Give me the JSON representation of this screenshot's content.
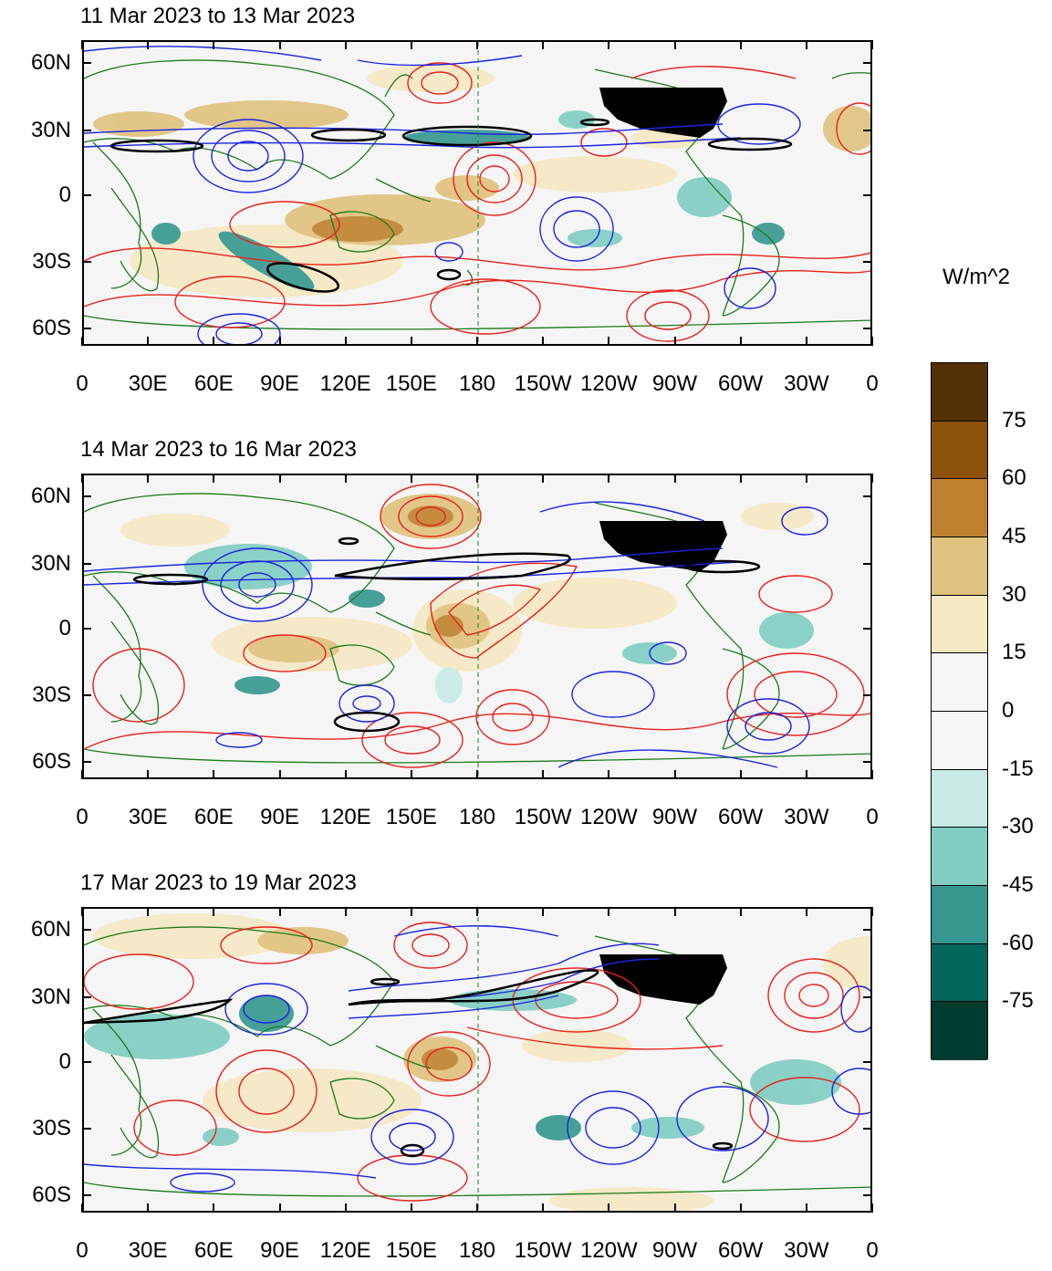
{
  "panels": [
    {
      "title": "11 Mar 2023 to 13 Mar 2023"
    },
    {
      "title": "14 Mar 2023 to 16 Mar 2023"
    },
    {
      "title": "17 Mar 2023 to 19 Mar 2023"
    }
  ],
  "axes": {
    "lat_labels": [
      "60N",
      "30N",
      "0",
      "30S",
      "60S"
    ],
    "lon_labels": [
      "0",
      "30E",
      "60E",
      "90E",
      "120E",
      "150E",
      "180",
      "150W",
      "120W",
      "90W",
      "60W",
      "30W",
      "0"
    ]
  },
  "colorbar": {
    "units": "W/m^2",
    "labels": [
      "75",
      "60",
      "45",
      "30",
      "15",
      "0",
      "-15",
      "-30",
      "-45",
      "-60",
      "-75"
    ],
    "colors": [
      "#543005",
      "#8c510a",
      "#bf812d",
      "#dfc27d",
      "#f6e8c3",
      "#f5f5f5",
      "#f5f5f5",
      "#c7eae5",
      "#80cdc1",
      "#35978f",
      "#01665e",
      "#003c30"
    ]
  },
  "colors": {
    "land_outline": "#1a7a1a",
    "positive_contour": "#e8201a",
    "negative_contour": "#1a24e0",
    "jet_contour": "#000000",
    "background": "#f5f5f5"
  }
}
